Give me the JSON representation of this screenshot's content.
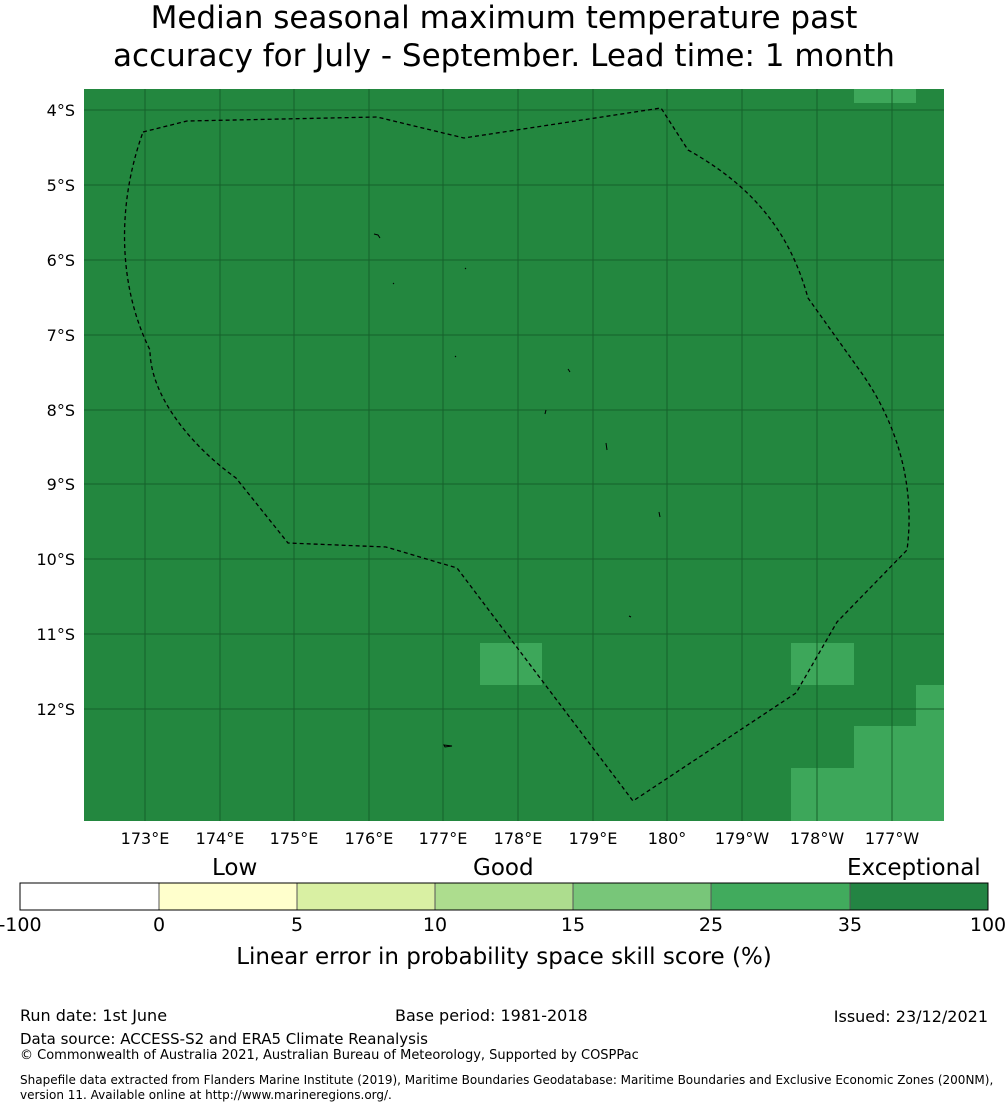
{
  "title": {
    "line1": "Median seasonal maximum temperature past",
    "line2": "accuracy for July - September. Lead time: 1 month"
  },
  "map": {
    "background_color": "#23873f",
    "patch_color": "#3da75a",
    "boundary": "dashed EEZ outline",
    "lat_ticks": [
      "4°S",
      "5°S",
      "6°S",
      "7°S",
      "8°S",
      "9°S",
      "10°S",
      "11°S",
      "12°S"
    ],
    "lon_ticks": [
      "173°E",
      "174°E",
      "175°E",
      "176°E",
      "177°E",
      "178°E",
      "179°E",
      "180°",
      "179°W",
      "178°W",
      "177°W"
    ]
  },
  "legend": {
    "categories": [
      "Low",
      "Good",
      "Exceptional"
    ],
    "ticks": [
      "-100",
      "0",
      "5",
      "10",
      "15",
      "25",
      "35",
      "100"
    ],
    "colors": [
      "#ffffff",
      "#ffffcc",
      "#d9f0a3",
      "#addd8e",
      "#78c679",
      "#41ab5d",
      "#238443"
    ],
    "label": "Linear error in probability space skill score (%)"
  },
  "footer": {
    "run_date": "Run date: 1st June",
    "base_period": "Base period: 1981-2018",
    "issued": "Issued: 23/12/2021",
    "data_source": "Data source: ACCESS-S2 and ERA5 Climate Reanalysis",
    "copyright": "© Commonwealth of Australia 2021, Australian Bureau of Meteorology, Supported by COSPPac",
    "shapefile_line1": "Shapefile data extracted from Flanders Marine Institute (2019), Maritime Boundaries Geodatabase: Maritime Boundaries and Exclusive Economic Zones (200NM),",
    "shapefile_line2": "version 11. Available online at http://www.marineregions.org/."
  }
}
